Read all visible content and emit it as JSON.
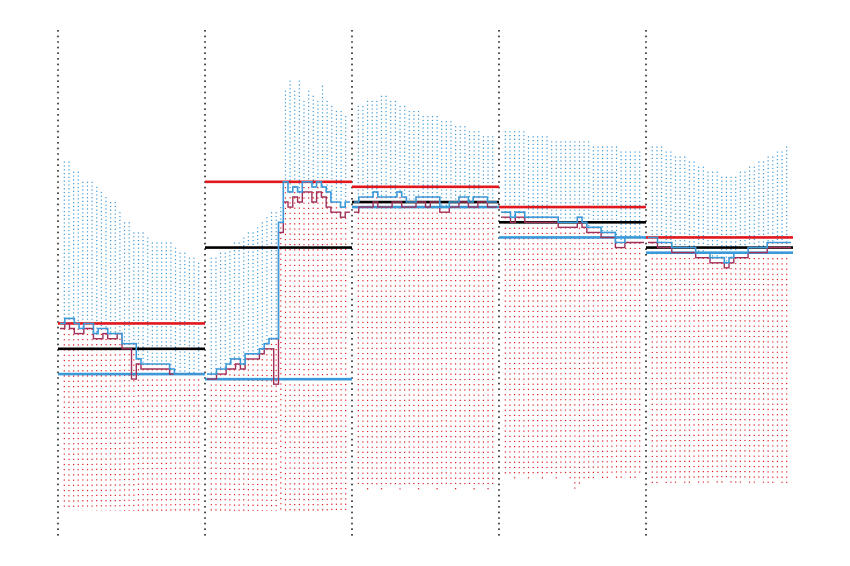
{
  "colors": {
    "blue": "#3a9ad9",
    "red": "#e0181e",
    "black": "#000000",
    "purple": "#a0305a",
    "separator": "#222222"
  },
  "chart_data": {
    "type": "line",
    "title": "",
    "xlabel": "",
    "ylabel": "",
    "grid": false,
    "legend": "none",
    "axes_visible": false,
    "xlim": [
      0,
      5
    ],
    "ylim": [
      0,
      1
    ],
    "segments": [
      {
        "index": 1,
        "red_level": 0.42,
        "black_level": 0.37,
        "blue_level": 0.32,
        "blue_top": [
          0.74,
          0.74,
          0.72,
          0.72,
          0.7,
          0.7,
          0.7,
          0.69,
          0.68,
          0.67,
          0.66,
          0.66,
          0.64,
          0.62,
          0.62,
          0.6,
          0.6,
          0.6,
          0.59,
          0.58,
          0.58,
          0.58,
          0.58,
          0.58,
          0.57,
          0.56,
          0.56,
          0.55,
          0.55,
          0.54
        ],
        "red_bottom": [
          0.05,
          0.05,
          0.05,
          0.05,
          0.05,
          0.05,
          0.05,
          0.05,
          0.05,
          0.05,
          0.05,
          0.05,
          0.05,
          0.05,
          0.05,
          0.05,
          0.05,
          0.05,
          0.05,
          0.05,
          0.05,
          0.05,
          0.05,
          0.05,
          0.05,
          0.05,
          0.05,
          0.05,
          0.05,
          0.05
        ],
        "blue_series": [
          0.42,
          0.43,
          0.43,
          0.42,
          0.41,
          0.42,
          0.42,
          0.4,
          0.41,
          0.41,
          0.4,
          0.4,
          0.4,
          0.38,
          0.38,
          0.38,
          0.35,
          0.34,
          0.34,
          0.34,
          0.34,
          0.34,
          0.34,
          0.33,
          0.32,
          0.32,
          0.32,
          0.32,
          0.32,
          0.32
        ],
        "purple_series": [
          0.41,
          0.42,
          0.41,
          0.4,
          0.4,
          0.41,
          0.41,
          0.39,
          0.39,
          0.4,
          0.39,
          0.39,
          0.4,
          0.37,
          0.37,
          0.31,
          0.34,
          0.33,
          0.33,
          0.33,
          0.33,
          0.33,
          0.33,
          0.32,
          0.32,
          0.32,
          0.32,
          0.32,
          0.32,
          0.32
        ]
      },
      {
        "index": 2,
        "red_level": 0.7,
        "black_level": 0.57,
        "blue_level": 0.31,
        "blue_top": [
          0.55,
          0.55,
          0.56,
          0.56,
          0.57,
          0.58,
          0.58,
          0.59,
          0.6,
          0.6,
          0.61,
          0.62,
          0.63,
          0.64,
          0.64,
          0.65,
          0.88,
          0.9,
          0.88,
          0.9,
          0.86,
          0.88,
          0.87,
          0.86,
          0.89,
          0.86,
          0.85,
          0.84,
          0.84,
          0.83
        ],
        "red_bottom": [
          0.05,
          0.05,
          0.05,
          0.05,
          0.05,
          0.05,
          0.05,
          0.05,
          0.05,
          0.05,
          0.05,
          0.05,
          0.05,
          0.05,
          0.05,
          0.05,
          0.05,
          0.05,
          0.05,
          0.05,
          0.05,
          0.05,
          0.05,
          0.05,
          0.05,
          0.05,
          0.05,
          0.05,
          0.05,
          0.05
        ],
        "blue_series": [
          0.32,
          0.32,
          0.33,
          0.33,
          0.34,
          0.35,
          0.35,
          0.34,
          0.36,
          0.36,
          0.36,
          0.37,
          0.38,
          0.39,
          0.39,
          0.62,
          0.7,
          0.68,
          0.69,
          0.68,
          0.7,
          0.7,
          0.69,
          0.7,
          0.69,
          0.68,
          0.66,
          0.66,
          0.65,
          0.66
        ],
        "purple_series": [
          0.31,
          0.31,
          0.32,
          0.32,
          0.33,
          0.33,
          0.34,
          0.33,
          0.35,
          0.35,
          0.35,
          0.36,
          0.37,
          0.37,
          0.3,
          0.6,
          0.66,
          0.65,
          0.67,
          0.66,
          0.68,
          0.68,
          0.66,
          0.68,
          0.67,
          0.65,
          0.64,
          0.64,
          0.63,
          0.64
        ]
      },
      {
        "index": 3,
        "red_level": 0.69,
        "black_level": 0.66,
        "blue_level": 0.65,
        "blue_top": [
          0.85,
          0.85,
          0.86,
          0.86,
          0.86,
          0.87,
          0.87,
          0.86,
          0.86,
          0.85,
          0.85,
          0.84,
          0.84,
          0.84,
          0.83,
          0.83,
          0.83,
          0.83,
          0.82,
          0.82,
          0.82,
          0.81,
          0.81,
          0.81,
          0.8,
          0.8,
          0.8,
          0.79,
          0.79,
          0.79
        ],
        "red_bottom": [
          0.1,
          0.1,
          0.09,
          0.1,
          0.1,
          0.09,
          0.1,
          0.1,
          0.1,
          0.09,
          0.1,
          0.1,
          0.1,
          0.09,
          0.1,
          0.1,
          0.1,
          0.09,
          0.1,
          0.1,
          0.1,
          0.09,
          0.1,
          0.1,
          0.1,
          0.09,
          0.1,
          0.1,
          0.09,
          0.1
        ],
        "blue_series": [
          0.66,
          0.67,
          0.67,
          0.67,
          0.68,
          0.67,
          0.67,
          0.67,
          0.67,
          0.68,
          0.67,
          0.66,
          0.66,
          0.67,
          0.67,
          0.67,
          0.67,
          0.67,
          0.65,
          0.65,
          0.66,
          0.66,
          0.67,
          0.67,
          0.66,
          0.67,
          0.67,
          0.67,
          0.66,
          0.66
        ],
        "purple_series": [
          0.64,
          0.65,
          0.65,
          0.65,
          0.66,
          0.65,
          0.65,
          0.65,
          0.66,
          0.66,
          0.65,
          0.65,
          0.65,
          0.66,
          0.66,
          0.65,
          0.66,
          0.66,
          0.64,
          0.64,
          0.65,
          0.65,
          0.66,
          0.66,
          0.65,
          0.65,
          0.66,
          0.66,
          0.65,
          0.65
        ]
      },
      {
        "index": 4,
        "red_level": 0.65,
        "black_level": 0.62,
        "blue_level": 0.59,
        "blue_top": [
          0.8,
          0.8,
          0.8,
          0.8,
          0.8,
          0.79,
          0.79,
          0.79,
          0.79,
          0.79,
          0.78,
          0.78,
          0.78,
          0.78,
          0.78,
          0.78,
          0.78,
          0.78,
          0.78,
          0.77,
          0.77,
          0.77,
          0.77,
          0.77,
          0.77,
          0.76,
          0.76,
          0.76,
          0.76,
          0.76
        ],
        "red_bottom": [
          0.12,
          0.12,
          0.11,
          0.12,
          0.12,
          0.11,
          0.12,
          0.12,
          0.11,
          0.12,
          0.12,
          0.11,
          0.12,
          0.12,
          0.11,
          0.09,
          0.1,
          0.11,
          0.11,
          0.11,
          0.12,
          0.11,
          0.11,
          0.12,
          0.11,
          0.11,
          0.12,
          0.11,
          0.11,
          0.12
        ],
        "blue_series": [
          0.64,
          0.64,
          0.63,
          0.64,
          0.64,
          0.63,
          0.63,
          0.63,
          0.63,
          0.63,
          0.63,
          0.63,
          0.62,
          0.62,
          0.62,
          0.62,
          0.63,
          0.62,
          0.61,
          0.61,
          0.61,
          0.6,
          0.6,
          0.6,
          0.58,
          0.58,
          0.59,
          0.59,
          0.59,
          0.59
        ],
        "purple_series": [
          0.63,
          0.63,
          0.62,
          0.63,
          0.63,
          0.62,
          0.62,
          0.62,
          0.62,
          0.62,
          0.62,
          0.62,
          0.61,
          0.61,
          0.61,
          0.61,
          0.62,
          0.61,
          0.6,
          0.6,
          0.6,
          0.59,
          0.59,
          0.59,
          0.57,
          0.57,
          0.58,
          0.58,
          0.58,
          0.58
        ]
      },
      {
        "index": 5,
        "red_level": 0.59,
        "black_level": 0.57,
        "blue_level": 0.56,
        "blue_top": [
          0.77,
          0.77,
          0.77,
          0.76,
          0.76,
          0.75,
          0.75,
          0.75,
          0.74,
          0.74,
          0.73,
          0.73,
          0.72,
          0.72,
          0.72,
          0.71,
          0.71,
          0.71,
          0.71,
          0.72,
          0.72,
          0.73,
          0.73,
          0.74,
          0.74,
          0.75,
          0.75,
          0.76,
          0.76,
          0.77
        ],
        "red_bottom": [
          0.1,
          0.1,
          0.11,
          0.1,
          0.1,
          0.1,
          0.11,
          0.1,
          0.1,
          0.11,
          0.1,
          0.1,
          0.1,
          0.11,
          0.1,
          0.1,
          0.11,
          0.1,
          0.1,
          0.1,
          0.11,
          0.1,
          0.1,
          0.11,
          0.1,
          0.1,
          0.1,
          0.11,
          0.1,
          0.1
        ],
        "blue_series": [
          0.59,
          0.59,
          0.58,
          0.58,
          0.58,
          0.57,
          0.57,
          0.57,
          0.57,
          0.57,
          0.56,
          0.56,
          0.56,
          0.55,
          0.55,
          0.55,
          0.54,
          0.55,
          0.56,
          0.56,
          0.56,
          0.57,
          0.57,
          0.57,
          0.57,
          0.58,
          0.58,
          0.58,
          0.58,
          0.58
        ],
        "purple_series": [
          0.58,
          0.58,
          0.57,
          0.57,
          0.57,
          0.56,
          0.56,
          0.56,
          0.56,
          0.56,
          0.55,
          0.55,
          0.55,
          0.54,
          0.54,
          0.54,
          0.53,
          0.54,
          0.55,
          0.55,
          0.55,
          0.56,
          0.56,
          0.56,
          0.56,
          0.57,
          0.57,
          0.57,
          0.57,
          0.57
        ]
      }
    ]
  }
}
